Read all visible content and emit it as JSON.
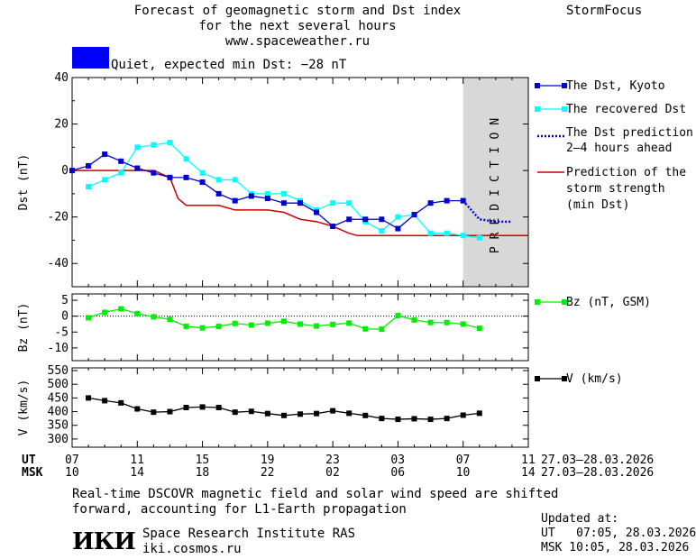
{
  "header": {
    "title_line1": "Forecast of geomagnetic storm and Dst index",
    "title_line2": "for the next several hours",
    "title_line3": "www.spaceweather.ru",
    "brand": "StormFocus",
    "status_text": "Quiet, expected min Dst: −28 nT",
    "status_color": "#0000ff"
  },
  "prediction_label": "PREDICTION",
  "legend": {
    "dst_kyoto": "The Dst, Kyoto",
    "dst_recovered": "The recovered Dst",
    "dst_pred_1": "The Dst prediction",
    "dst_pred_2": "2–4 hours ahead",
    "storm_1": "Prediction of the",
    "storm_2": "storm strength",
    "storm_3": "(min Dst)",
    "bz": "Bz (nT, GSM)",
    "v": "V (km/s)"
  },
  "time_axis": {
    "ut_label": "UT",
    "msk_label": "MSK",
    "ut_ticks": [
      "07",
      "11",
      "15",
      "19",
      "23",
      "03",
      "07",
      "11"
    ],
    "msk_ticks": [
      "10",
      "14",
      "18",
      "22",
      "02",
      "06",
      "10",
      "14"
    ],
    "ut_range": "27.03–28.03.2026",
    "msk_range": "27.03–28.03.2026"
  },
  "footer": {
    "note_line1": "Real-time DSCOVR magnetic field and solar wind speed are shifted",
    "note_line2": "forward, accounting for L1-Earth propagation",
    "logo_text": "ИКИ",
    "institute": "Space Research Institute RAS",
    "site": "iki.cosmos.ru",
    "updated_label": "Updated at:",
    "updated_ut": "UT   07:05, 28.03.2026",
    "updated_msk": "MSK 10:05, 28.03.2026"
  },
  "colors": {
    "kyoto": "#0000cc",
    "recovered": "#00ffff",
    "prediction": "#0000cc",
    "storm": "#cc0000",
    "bz": "#00ee00",
    "v": "#000000",
    "prediction_band": "#d8d8d8"
  },
  "chart_data": [
    {
      "type": "line",
      "panel": "dst",
      "ylabel": "Dst (nT)",
      "xrange_hours": [
        0,
        28
      ],
      "ylim": [
        -50,
        40
      ],
      "yticks": [
        40,
        20,
        0,
        -20,
        -40
      ],
      "prediction_start_hour": 24,
      "series": [
        {
          "name": "The Dst, Kyoto",
          "x": [
            0,
            1,
            2,
            3,
            4,
            5,
            6,
            7,
            8,
            9,
            10,
            11,
            12,
            13,
            14,
            15,
            16,
            17,
            18,
            19,
            20,
            21,
            22,
            23,
            24
          ],
          "values": [
            0,
            2,
            7,
            4,
            1,
            -1,
            -3,
            -3,
            -5,
            -10,
            -13,
            -11,
            -12,
            -14,
            -14,
            -18,
            -24,
            -21,
            -21,
            -21,
            -25,
            -19,
            -14,
            -13,
            -13
          ]
        },
        {
          "name": "The recovered Dst",
          "x": [
            1,
            2,
            3,
            4,
            5,
            6,
            7,
            8,
            9,
            10,
            11,
            12,
            13,
            14,
            15,
            16,
            17,
            18,
            19,
            20,
            21,
            22,
            23,
            24,
            25
          ],
          "values": [
            -7,
            -4,
            -1,
            10,
            11,
            12,
            5,
            -1,
            -4,
            -4,
            -10,
            -10,
            -10,
            -13,
            -17,
            -14,
            -14,
            -22,
            -26,
            -20,
            -19,
            -27,
            -27,
            -28,
            -29
          ]
        },
        {
          "name": "The Dst prediction 2–4 hours ahead",
          "x": [
            24,
            24.5,
            25,
            26,
            27
          ],
          "values": [
            -13,
            -17,
            -21,
            -22,
            -22
          ]
        },
        {
          "name": "Prediction of the storm strength (min Dst)",
          "x": [
            0,
            5,
            6,
            6.5,
            7,
            8,
            9,
            10,
            11,
            12,
            13,
            14,
            15,
            16,
            17,
            17.5,
            28
          ],
          "values": [
            0,
            0,
            -3,
            -12,
            -15,
            -15,
            -15,
            -17,
            -17,
            -17,
            -18,
            -21,
            -22,
            -24,
            -27,
            -28,
            -28
          ]
        }
      ]
    },
    {
      "type": "line",
      "panel": "bz",
      "ylabel": "Bz (nT)",
      "ylim": [
        -14,
        7
      ],
      "yticks": [
        5,
        0,
        -5,
        -10
      ],
      "series": [
        {
          "name": "Bz (nT, GSM)",
          "x": [
            1,
            2,
            3,
            4,
            5,
            6,
            7,
            8,
            9,
            10,
            11,
            12,
            13,
            14,
            15,
            16,
            17,
            18,
            19,
            20,
            21,
            22,
            23,
            24,
            25
          ],
          "values": [
            -0.5,
            1.2,
            2.3,
            0.8,
            -0.2,
            -1,
            -3.2,
            -3.7,
            -3.2,
            -2.3,
            -2.8,
            -2.2,
            -1.6,
            -2.5,
            -3.1,
            -2.6,
            -2.2,
            -4,
            -4.1,
            0.2,
            -1.2,
            -2,
            -2,
            -2.5,
            -3.8
          ]
        }
      ]
    },
    {
      "type": "line",
      "panel": "v",
      "ylabel": "V (km/s)",
      "ylim": [
        270,
        560
      ],
      "yticks": [
        550,
        500,
        450,
        400,
        350,
        300
      ],
      "series": [
        {
          "name": "V (km/s)",
          "x": [
            1,
            2,
            3,
            4,
            5,
            6,
            7,
            8,
            9,
            10,
            11,
            12,
            13,
            14,
            15,
            16,
            17,
            18,
            19,
            20,
            21,
            22,
            23,
            24,
            25
          ],
          "values": [
            450,
            440,
            432,
            410,
            398,
            400,
            415,
            417,
            415,
            398,
            401,
            393,
            386,
            391,
            393,
            403,
            394,
            386,
            375,
            372,
            374,
            372,
            375,
            387,
            394
          ]
        }
      ]
    }
  ]
}
